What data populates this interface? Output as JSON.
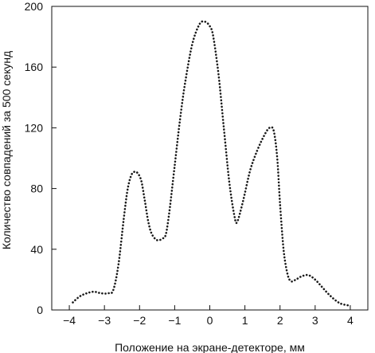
{
  "chart_data": {
    "type": "line",
    "title": "",
    "xlabel": "Положение на экране-детекторе, мм",
    "ylabel": "Количество совпадений за 500 секунд",
    "xlim": [
      -4.5,
      4.5
    ],
    "ylim": [
      0,
      200
    ],
    "x_ticks": [
      -4,
      -3,
      -2,
      -1,
      0,
      1,
      2,
      3,
      4
    ],
    "x_tick_labels": [
      "−4",
      "−3",
      "−2",
      "−1",
      "0",
      "1",
      "2",
      "3",
      "4"
    ],
    "y_ticks": [
      0,
      40,
      80,
      120,
      160,
      200
    ],
    "y_tick_labels": [
      "0",
      "40",
      "80",
      "120",
      "160",
      "200"
    ],
    "grid": false,
    "line_style": "dotted",
    "series": [
      {
        "x": [
          -3.9,
          -3.7,
          -3.5,
          -3.3,
          -3.1,
          -2.9,
          -2.75,
          -2.6,
          -2.45,
          -2.35,
          -2.25,
          -2.15,
          -2.05,
          -1.95,
          -1.85,
          -1.75,
          -1.65,
          -1.5,
          -1.35,
          -1.25,
          -1.15,
          -1.0,
          -0.85,
          -0.7,
          -0.5,
          -0.3,
          -0.15,
          0.0,
          0.1,
          0.25,
          0.4,
          0.55,
          0.7,
          0.78,
          0.95,
          1.15,
          1.35,
          1.55,
          1.7,
          1.82,
          1.92,
          2.0,
          2.1,
          2.2,
          2.3,
          2.45,
          2.6,
          2.8,
          3.0,
          3.2,
          3.4,
          3.6,
          3.75,
          3.95
        ],
        "y": [
          5,
          9,
          11,
          12,
          11,
          11,
          13,
          30,
          60,
          78,
          88,
          91,
          90,
          85,
          72,
          58,
          50,
          46,
          47,
          50,
          65,
          95,
          125,
          150,
          175,
          188,
          190,
          187,
          180,
          155,
          120,
          85,
          62,
          58,
          72,
          92,
          105,
          115,
          120,
          118,
          100,
          70,
          40,
          25,
          19,
          20,
          22,
          23,
          20,
          15,
          10,
          6,
          4,
          3
        ]
      }
    ]
  }
}
